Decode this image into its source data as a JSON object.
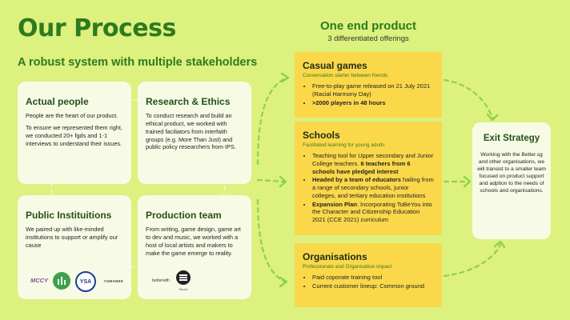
{
  "title": "Our Process",
  "subtitle": "A robust system with multiple stakeholders",
  "product": {
    "title": "One end product",
    "subtitle": "3 differentiated offerings"
  },
  "cards": {
    "people": {
      "title": "Actual people",
      "p1": "People are the heart of our product.",
      "p2": "To ensure we represented them right, we conducted 20+ fgds and 1-1 interviews to understand their issues."
    },
    "research": {
      "title": "Research & Ethics",
      "p1": "To conduct research and build an ethical product, we worked with trained faciliators from interfaith groups (e.g. More Than Just) and public policy researchers from IPS."
    },
    "public": {
      "title": "Public Instituitions",
      "p1": "We paired up with like-minded institutions to support or amplify our cause"
    },
    "production": {
      "title": "Production team",
      "p1": "From writing, game design, game art to dev and music, we worked with a host of local artists and makers to make the game emerge to reality."
    }
  },
  "logos": {
    "mccy": "MCCY",
    "ysa": "YSA",
    "yumanek": "YUMANEK",
    "betterwith": "betterwith",
    "bullet": "Studio"
  },
  "offerings": {
    "casual": {
      "title": "Casual games",
      "tag": "Conversation starter between friends",
      "b1": "Free-to-play game released on 21 July 2021 (Racial Harmony Day)",
      "b2": ">2000 players in 48 hours"
    },
    "schools": {
      "title": "Schools",
      "tag": "Facilitated learning for young adults",
      "b1a": "Teaching tool for Upper secondary and Junior College teachers. ",
      "b1b": "6 teachers from 6 schools have pledged interest",
      "b2a": "Headed by a team of educators",
      "b2b": " hailing from a range of secondary schools, junior colleges, and tertiary education institutions",
      "b3a": "Expansion Plan",
      "b3b": ": Incorporating ToBeYou into the Character and Citizenship Education 2021 (CCE 2021) curriculum"
    },
    "organisations": {
      "title": "Organisations",
      "tag": "Professionals and Organisation impact",
      "b1": "Paid coporate training tool",
      "b2": "Current customer lineup: Common ground"
    }
  },
  "exit": {
    "title": "Exit Strategy",
    "body": "Working with the Better.sg and other organisations, we will transist to a smaller team focused on product support and adption to the needs of schools and organisations."
  },
  "colors": {
    "background": "#dcf17e",
    "accent_green": "#2e7a1f",
    "card": "#f7fbe6",
    "offering": "#fbd84a",
    "connector": "#7cc63a"
  }
}
